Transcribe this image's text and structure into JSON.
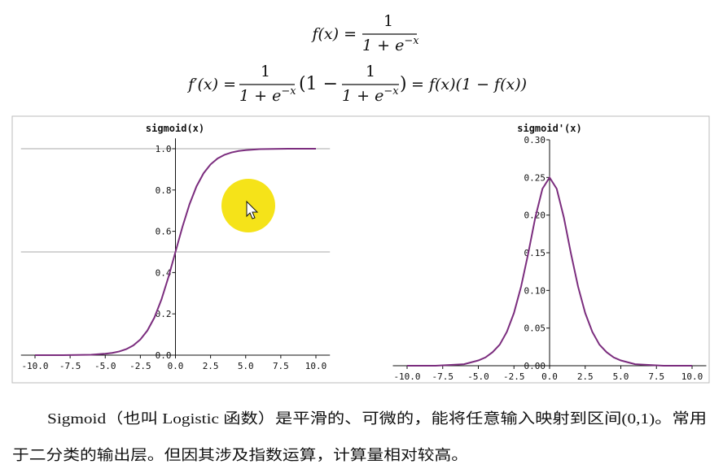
{
  "formula_1": {
    "lhs": "f(x) =",
    "num": "1",
    "den": "1 + e",
    "exp": "−x"
  },
  "formula_2": {
    "lhs": "f′(x) =",
    "frac_1": {
      "num": "1",
      "den": "1 + e",
      "exp": "−x"
    },
    "open": "(1 −",
    "frac_2": {
      "num": "1",
      "den": "1 + e",
      "exp": "−x"
    },
    "close": ")",
    "rhs": "= f(x)(1 − f(x))"
  },
  "chart_data": [
    {
      "type": "line",
      "title": "sigmoid(x)",
      "x": [
        -10,
        -8,
        -6,
        -5,
        -4.5,
        -4,
        -3.5,
        -3,
        -2.5,
        -2,
        -1.5,
        -1,
        -0.5,
        0,
        0.5,
        1,
        1.5,
        2,
        2.5,
        3,
        3.5,
        4,
        4.5,
        5,
        6,
        8,
        10
      ],
      "values": [
        0,
        0,
        0.002,
        0.007,
        0.011,
        0.018,
        0.029,
        0.047,
        0.076,
        0.119,
        0.182,
        0.269,
        0.378,
        0.5,
        0.622,
        0.731,
        0.818,
        0.881,
        0.924,
        0.953,
        0.971,
        0.982,
        0.989,
        0.993,
        0.998,
        1,
        1
      ],
      "color": "#7b2d7e",
      "xlim": [
        -11,
        11
      ],
      "ylim": [
        0,
        1.05
      ],
      "xticks": [
        {
          "value": -10,
          "label": "-10.0"
        },
        {
          "value": -7.5,
          "label": "-7.5"
        },
        {
          "value": -5,
          "label": "-5.0"
        },
        {
          "value": -2.5,
          "label": "-2.5"
        },
        {
          "value": 0,
          "label": "0.0"
        },
        {
          "value": 2.5,
          "label": "2.5"
        },
        {
          "value": 5,
          "label": "5.0"
        },
        {
          "value": 7.5,
          "label": "7.5"
        },
        {
          "value": 10,
          "label": "10.0"
        }
      ],
      "yticks": [
        {
          "value": 0,
          "label": "0.0"
        },
        0.2,
        0.4,
        0.6,
        0.8,
        {
          "value": 1,
          "label": "1.0"
        }
      ],
      "hlines": [
        0.5,
        1
      ]
    },
    {
      "type": "line",
      "title": "sigmoid'(x)",
      "x": [
        -10,
        -8,
        -6,
        -5,
        -4.5,
        -4,
        -3.5,
        -3,
        -2.5,
        -2,
        -1.5,
        -1,
        -0.5,
        0,
        0.5,
        1,
        1.5,
        2,
        2.5,
        3,
        3.5,
        4,
        4.5,
        5,
        6,
        8,
        10
      ],
      "values": [
        0,
        0,
        0.002,
        0.007,
        0.011,
        0.018,
        0.028,
        0.045,
        0.07,
        0.105,
        0.149,
        0.197,
        0.235,
        0.25,
        0.235,
        0.197,
        0.149,
        0.105,
        0.07,
        0.045,
        0.028,
        0.018,
        0.011,
        0.007,
        0.002,
        0,
        0
      ],
      "color": "#7b2d7e",
      "xlim": [
        -11,
        11
      ],
      "ylim": [
        0,
        0.3
      ],
      "xticks": [
        {
          "value": -10,
          "label": "-10.0"
        },
        {
          "value": -7.5,
          "label": "-7.5"
        },
        {
          "value": -5,
          "label": "-5.0"
        },
        {
          "value": -2.5,
          "label": "-2.5"
        },
        {
          "value": 0,
          "label": "0.0"
        },
        {
          "value": 2.5,
          "label": "2.5"
        },
        {
          "value": 5,
          "label": "5.0"
        },
        {
          "value": 7.5,
          "label": "7.5"
        },
        {
          "value": 10,
          "label": "10.0"
        }
      ],
      "yticks": [
        {
          "value": 0,
          "label": "0.00"
        },
        {
          "value": 0.05,
          "label": "0.05"
        },
        {
          "value": 0.1,
          "label": "0.10"
        },
        {
          "value": 0.15,
          "label": "0.15"
        },
        {
          "value": 0.2,
          "label": "0.20"
        },
        {
          "value": 0.25,
          "label": "0.25"
        },
        {
          "value": 0.3,
          "label": "0.30"
        }
      ],
      "hlines": []
    }
  ],
  "paragraph": [
    "Sigmoid（也叫 Logistic 函数）是平滑的、可微的，能将任意输入映射到区间(0,1)。常用",
    "于二分类的输出层。但因其涉及指数运算，计算量相对较高。"
  ]
}
